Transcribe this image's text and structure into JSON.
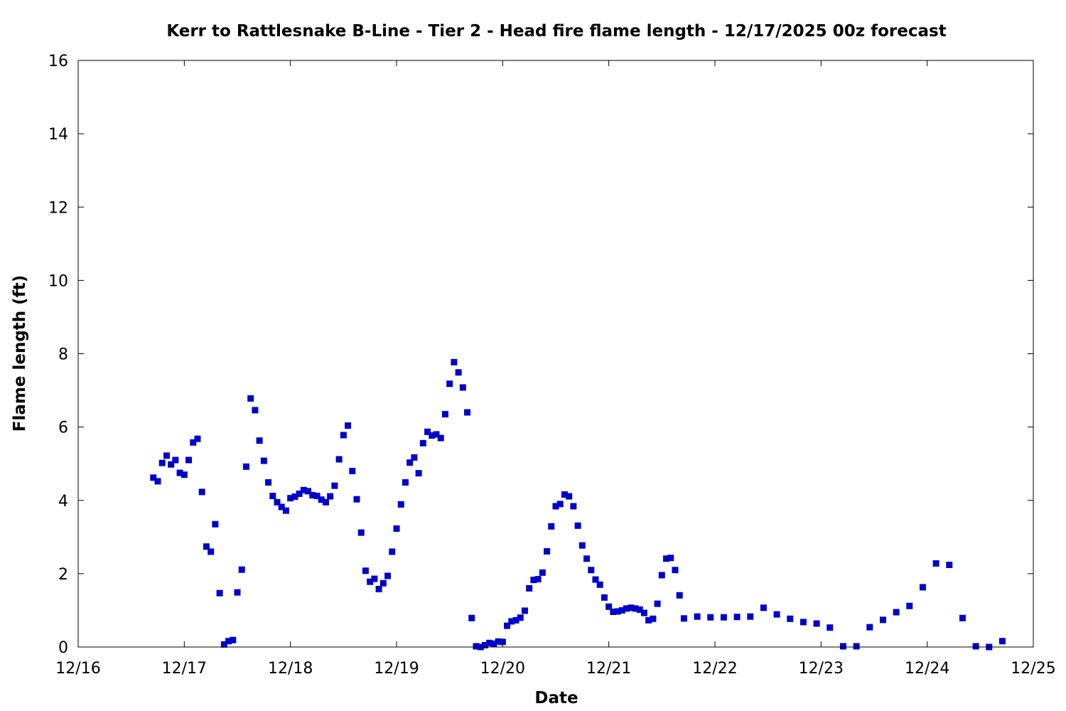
{
  "chart_data": {
    "type": "scatter",
    "title": "Kerr to Rattlesnake B-Line - Tier 2 - Head fire flame length - 12/17/2025 00z forecast",
    "xlabel": "Date",
    "ylabel": "Flame length (ft)",
    "xlim": [
      "2025-12-16",
      "2025-12-25"
    ],
    "ylim": [
      0,
      16
    ],
    "x_tick_labels": [
      "12/16",
      "12/17",
      "12/18",
      "12/19",
      "12/20",
      "12/21",
      "12/22",
      "12/23",
      "12/24",
      "12/25"
    ],
    "y_tick_labels": [
      "0",
      "2",
      "4",
      "6",
      "8",
      "10",
      "12",
      "14",
      "16"
    ],
    "grid": false,
    "legend": "none",
    "marker": "square",
    "marker_color": "#0000cc",
    "series": [
      {
        "points": [
          [
            "2025-12-16 17:00",
            4.62
          ],
          [
            "2025-12-16 18:00",
            4.52
          ],
          [
            "2025-12-16 19:00",
            5.02
          ],
          [
            "2025-12-16 20:00",
            5.22
          ],
          [
            "2025-12-16 21:00",
            4.98
          ],
          [
            "2025-12-16 22:00",
            5.1
          ],
          [
            "2025-12-16 23:00",
            4.75
          ],
          [
            "2025-12-17 00:00",
            4.7
          ],
          [
            "2025-12-17 01:00",
            5.1
          ],
          [
            "2025-12-17 02:00",
            5.58
          ],
          [
            "2025-12-17 03:00",
            5.68
          ],
          [
            "2025-12-17 04:00",
            4.23
          ],
          [
            "2025-12-17 05:00",
            2.74
          ],
          [
            "2025-12-17 06:00",
            2.6
          ],
          [
            "2025-12-17 07:00",
            3.35
          ],
          [
            "2025-12-17 08:00",
            1.47
          ],
          [
            "2025-12-17 09:00",
            0.07
          ],
          [
            "2025-12-17 10:00",
            0.16
          ],
          [
            "2025-12-17 11:00",
            0.19
          ],
          [
            "2025-12-17 12:00",
            1.49
          ],
          [
            "2025-12-17 13:00",
            2.11
          ],
          [
            "2025-12-17 14:00",
            4.92
          ],
          [
            "2025-12-17 15:00",
            6.78
          ],
          [
            "2025-12-17 16:00",
            6.46
          ],
          [
            "2025-12-17 17:00",
            5.63
          ],
          [
            "2025-12-17 18:00",
            5.08
          ],
          [
            "2025-12-17 19:00",
            4.49
          ],
          [
            "2025-12-17 20:00",
            4.12
          ],
          [
            "2025-12-17 21:00",
            3.95
          ],
          [
            "2025-12-17 22:00",
            3.82
          ],
          [
            "2025-12-17 23:00",
            3.72
          ],
          [
            "2025-12-18 00:00",
            4.06
          ],
          [
            "2025-12-18 01:00",
            4.1
          ],
          [
            "2025-12-18 02:00",
            4.18
          ],
          [
            "2025-12-18 03:00",
            4.28
          ],
          [
            "2025-12-18 04:00",
            4.25
          ],
          [
            "2025-12-18 05:00",
            4.14
          ],
          [
            "2025-12-18 06:00",
            4.12
          ],
          [
            "2025-12-18 07:00",
            4.02
          ],
          [
            "2025-12-18 08:00",
            3.95
          ],
          [
            "2025-12-18 09:00",
            4.11
          ],
          [
            "2025-12-18 10:00",
            4.4
          ],
          [
            "2025-12-18 11:00",
            5.12
          ],
          [
            "2025-12-18 12:00",
            5.78
          ],
          [
            "2025-12-18 13:00",
            6.04
          ],
          [
            "2025-12-18 14:00",
            4.8
          ],
          [
            "2025-12-18 15:00",
            4.03
          ],
          [
            "2025-12-18 16:00",
            3.12
          ],
          [
            "2025-12-18 17:00",
            2.08
          ],
          [
            "2025-12-18 18:00",
            1.78
          ],
          [
            "2025-12-18 19:00",
            1.86
          ],
          [
            "2025-12-18 20:00",
            1.58
          ],
          [
            "2025-12-18 21:00",
            1.74
          ],
          [
            "2025-12-18 22:00",
            1.94
          ],
          [
            "2025-12-18 23:00",
            2.6
          ],
          [
            "2025-12-19 00:00",
            3.23
          ],
          [
            "2025-12-19 01:00",
            3.89
          ],
          [
            "2025-12-19 02:00",
            4.49
          ],
          [
            "2025-12-19 03:00",
            5.03
          ],
          [
            "2025-12-19 04:00",
            5.17
          ],
          [
            "2025-12-19 05:00",
            4.74
          ],
          [
            "2025-12-19 06:00",
            5.56
          ],
          [
            "2025-12-19 07:00",
            5.87
          ],
          [
            "2025-12-19 08:00",
            5.77
          ],
          [
            "2025-12-19 09:00",
            5.8
          ],
          [
            "2025-12-19 10:00",
            5.7
          ],
          [
            "2025-12-19 11:00",
            6.35
          ],
          [
            "2025-12-19 12:00",
            7.18
          ],
          [
            "2025-12-19 13:00",
            7.77
          ],
          [
            "2025-12-19 14:00",
            7.49
          ],
          [
            "2025-12-19 15:00",
            7.08
          ],
          [
            "2025-12-19 16:00",
            6.4
          ],
          [
            "2025-12-19 17:00",
            0.79
          ],
          [
            "2025-12-19 18:00",
            0.02
          ],
          [
            "2025-12-19 19:00",
            0.0
          ],
          [
            "2025-12-19 20:00",
            0.05
          ],
          [
            "2025-12-19 21:00",
            0.11
          ],
          [
            "2025-12-19 22:00",
            0.09
          ],
          [
            "2025-12-19 23:00",
            0.15
          ],
          [
            "2025-12-20 00:00",
            0.14
          ],
          [
            "2025-12-20 01:00",
            0.58
          ],
          [
            "2025-12-20 02:00",
            0.7
          ],
          [
            "2025-12-20 03:00",
            0.73
          ],
          [
            "2025-12-20 04:00",
            0.8
          ],
          [
            "2025-12-20 05:00",
            0.99
          ],
          [
            "2025-12-20 06:00",
            1.6
          ],
          [
            "2025-12-20 07:00",
            1.83
          ],
          [
            "2025-12-20 08:00",
            1.85
          ],
          [
            "2025-12-20 09:00",
            2.03
          ],
          [
            "2025-12-20 10:00",
            2.61
          ],
          [
            "2025-12-20 11:00",
            3.29
          ],
          [
            "2025-12-20 12:00",
            3.84
          ],
          [
            "2025-12-20 13:00",
            3.9
          ],
          [
            "2025-12-20 14:00",
            4.16
          ],
          [
            "2025-12-20 15:00",
            4.11
          ],
          [
            "2025-12-20 16:00",
            3.84
          ],
          [
            "2025-12-20 17:00",
            3.31
          ],
          [
            "2025-12-20 18:00",
            2.77
          ],
          [
            "2025-12-20 19:00",
            2.41
          ],
          [
            "2025-12-20 20:00",
            2.1
          ],
          [
            "2025-12-20 21:00",
            1.84
          ],
          [
            "2025-12-20 22:00",
            1.7
          ],
          [
            "2025-12-20 23:00",
            1.35
          ],
          [
            "2025-12-21 00:00",
            1.1
          ],
          [
            "2025-12-21 01:00",
            0.96
          ],
          [
            "2025-12-21 02:00",
            0.97
          ],
          [
            "2025-12-21 03:00",
            1.0
          ],
          [
            "2025-12-21 04:00",
            1.05
          ],
          [
            "2025-12-21 05:00",
            1.07
          ],
          [
            "2025-12-21 06:00",
            1.05
          ],
          [
            "2025-12-21 07:00",
            1.02
          ],
          [
            "2025-12-21 08:00",
            0.93
          ],
          [
            "2025-12-21 09:00",
            0.73
          ],
          [
            "2025-12-21 10:00",
            0.77
          ],
          [
            "2025-12-21 11:00",
            1.18
          ],
          [
            "2025-12-21 12:00",
            1.96
          ],
          [
            "2025-12-21 13:00",
            2.41
          ],
          [
            "2025-12-21 14:00",
            2.43
          ],
          [
            "2025-12-21 15:00",
            2.1
          ],
          [
            "2025-12-21 16:00",
            1.41
          ],
          [
            "2025-12-21 17:00",
            0.78
          ],
          [
            "2025-12-21 20:00",
            0.83
          ],
          [
            "2025-12-21 23:00",
            0.81
          ],
          [
            "2025-12-22 02:00",
            0.81
          ],
          [
            "2025-12-22 05:00",
            0.82
          ],
          [
            "2025-12-22 08:00",
            0.83
          ],
          [
            "2025-12-22 11:00",
            1.07
          ],
          [
            "2025-12-22 14:00",
            0.89
          ],
          [
            "2025-12-22 17:00",
            0.77
          ],
          [
            "2025-12-22 20:00",
            0.68
          ],
          [
            "2025-12-22 23:00",
            0.64
          ],
          [
            "2025-12-23 02:00",
            0.53
          ],
          [
            "2025-12-23 05:00",
            0.02
          ],
          [
            "2025-12-23 08:00",
            0.02
          ],
          [
            "2025-12-23 11:00",
            0.54
          ],
          [
            "2025-12-23 14:00",
            0.74
          ],
          [
            "2025-12-23 17:00",
            0.95
          ],
          [
            "2025-12-23 20:00",
            1.12
          ],
          [
            "2025-12-23 23:00",
            1.63
          ],
          [
            "2025-12-24 02:00",
            2.28
          ],
          [
            "2025-12-24 05:00",
            2.24
          ],
          [
            "2025-12-24 08:00",
            0.79
          ],
          [
            "2025-12-24 11:00",
            0.02
          ],
          [
            "2025-12-24 14:00",
            0.0
          ],
          [
            "2025-12-24 17:00",
            0.16
          ]
        ]
      }
    ]
  }
}
